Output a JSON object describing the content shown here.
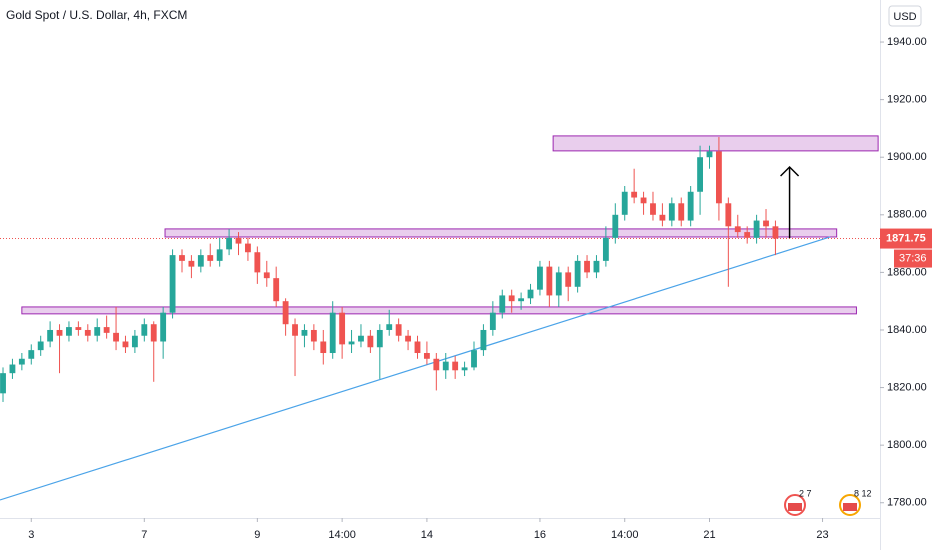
{
  "chart_data": {
    "type": "candlestick",
    "title": "Gold Spot / U.S. Dollar, 4h, FXCM",
    "currency": "USD",
    "up_color": "#26a69a",
    "down_color": "#ef5350",
    "ylim": [
      1774.7,
      1954.6
    ],
    "xlim": [
      -0.32,
      93.1
    ],
    "yticks": [
      {
        "value": 1780,
        "label": "1780.00"
      },
      {
        "value": 1800,
        "label": "1800.00"
      },
      {
        "value": 1820,
        "label": "1820.00"
      },
      {
        "value": 1840,
        "label": "1840.00"
      },
      {
        "value": 1860,
        "label": "1860.00"
      },
      {
        "value": 1880,
        "label": "1880.00"
      },
      {
        "value": 1900,
        "label": "1900.00"
      },
      {
        "value": 1920,
        "label": "1920.00"
      },
      {
        "value": 1940,
        "label": "1940.00"
      }
    ],
    "xticks": [
      {
        "value": 3,
        "label": "3"
      },
      {
        "value": 15,
        "label": "7"
      },
      {
        "value": 27,
        "label": "9"
      },
      {
        "value": 36,
        "label": "14:00"
      },
      {
        "value": 45,
        "label": "14"
      },
      {
        "value": 57,
        "label": "16"
      },
      {
        "value": 66,
        "label": "14:00"
      },
      {
        "value": 75,
        "label": "21"
      },
      {
        "value": 87,
        "label": "23"
      }
    ],
    "candles": [
      [
        1818,
        1827,
        1815,
        1825
      ],
      [
        1825,
        1830,
        1823,
        1828
      ],
      [
        1828,
        1832,
        1826,
        1830
      ],
      [
        1830,
        1835,
        1828,
        1833
      ],
      [
        1833,
        1838,
        1831,
        1836
      ],
      [
        1836,
        1843,
        1834,
        1840
      ],
      [
        1840,
        1842,
        1825,
        1838
      ],
      [
        1838,
        1843,
        1836,
        1841
      ],
      [
        1841,
        1843,
        1838,
        1840
      ],
      [
        1840,
        1842,
        1836,
        1838
      ],
      [
        1838,
        1844,
        1836,
        1841
      ],
      [
        1841,
        1845,
        1837,
        1839
      ],
      [
        1839,
        1848,
        1833,
        1836
      ],
      [
        1836,
        1838,
        1832,
        1834
      ],
      [
        1834,
        1840,
        1832,
        1838
      ],
      [
        1838,
        1844,
        1836,
        1842
      ],
      [
        1842,
        1843,
        1822,
        1836
      ],
      [
        1836,
        1848,
        1830,
        1846
      ],
      [
        1846,
        1868,
        1844,
        1866
      ],
      [
        1866,
        1868,
        1860,
        1864
      ],
      [
        1864,
        1866,
        1858,
        1862
      ],
      [
        1862,
        1868,
        1860,
        1866
      ],
      [
        1866,
        1870,
        1862,
        1864
      ],
      [
        1864,
        1872,
        1862,
        1868
      ],
      [
        1868,
        1875,
        1866,
        1872
      ],
      [
        1872,
        1874,
        1866,
        1870
      ],
      [
        1870,
        1872,
        1864,
        1867
      ],
      [
        1867,
        1869,
        1856,
        1860
      ],
      [
        1860,
        1864,
        1855,
        1858
      ],
      [
        1858,
        1862,
        1848,
        1850
      ],
      [
        1850,
        1851,
        1838,
        1842
      ],
      [
        1842,
        1844,
        1824,
        1838
      ],
      [
        1838,
        1842,
        1834,
        1840
      ],
      [
        1840,
        1842,
        1833,
        1836
      ],
      [
        1836,
        1840,
        1828,
        1832
      ],
      [
        1832,
        1850,
        1830,
        1846
      ],
      [
        1846,
        1848,
        1830,
        1835
      ],
      [
        1835,
        1840,
        1832,
        1836
      ],
      [
        1836,
        1842,
        1834,
        1838
      ],
      [
        1838,
        1840,
        1832,
        1834
      ],
      [
        1834,
        1842,
        1823,
        1840
      ],
      [
        1840,
        1847,
        1838,
        1842
      ],
      [
        1842,
        1844,
        1836,
        1838
      ],
      [
        1838,
        1840,
        1833,
        1836
      ],
      [
        1836,
        1838,
        1830,
        1832
      ],
      [
        1832,
        1836,
        1828,
        1830
      ],
      [
        1830,
        1832,
        1819,
        1826
      ],
      [
        1826,
        1832,
        1823,
        1829
      ],
      [
        1829,
        1831,
        1823,
        1826
      ],
      [
        1826,
        1829,
        1824,
        1827
      ],
      [
        1827,
        1836,
        1826,
        1833
      ],
      [
        1833,
        1842,
        1831,
        1840
      ],
      [
        1840,
        1850,
        1838,
        1846
      ],
      [
        1846,
        1854,
        1844,
        1852
      ],
      [
        1852,
        1854,
        1846,
        1850
      ],
      [
        1850,
        1853,
        1847,
        1851
      ],
      [
        1851,
        1856,
        1849,
        1854
      ],
      [
        1854,
        1864,
        1852,
        1862
      ],
      [
        1862,
        1864,
        1848,
        1852
      ],
      [
        1852,
        1862,
        1848,
        1860
      ],
      [
        1860,
        1862,
        1850,
        1855
      ],
      [
        1855,
        1866,
        1853,
        1864
      ],
      [
        1864,
        1866,
        1858,
        1860
      ],
      [
        1860,
        1866,
        1858,
        1864
      ],
      [
        1864,
        1876,
        1862,
        1872
      ],
      [
        1872,
        1884,
        1870,
        1880
      ],
      [
        1880,
        1890,
        1878,
        1888
      ],
      [
        1888,
        1896,
        1884,
        1886
      ],
      [
        1886,
        1888,
        1880,
        1884
      ],
      [
        1884,
        1888,
        1878,
        1880
      ],
      [
        1880,
        1884,
        1876,
        1878
      ],
      [
        1878,
        1886,
        1876,
        1884
      ],
      [
        1884,
        1886,
        1876,
        1878
      ],
      [
        1878,
        1890,
        1876,
        1888
      ],
      [
        1888,
        1904,
        1880,
        1900
      ],
      [
        1900,
        1904,
        1896,
        1902
      ],
      [
        1902,
        1907,
        1878,
        1884
      ],
      [
        1884,
        1886,
        1855,
        1876
      ],
      [
        1876,
        1880,
        1872,
        1874
      ],
      [
        1874,
        1876,
        1870,
        1872
      ],
      [
        1872,
        1880,
        1870,
        1878
      ],
      [
        1878,
        1882,
        1872,
        1876
      ],
      [
        1876,
        1878,
        1866,
        1871.75
      ]
    ],
    "zones": [
      {
        "x": [
          58.4,
          92.9
        ],
        "y": [
          1902.2,
          1907.4
        ]
      },
      {
        "x": [
          17.2,
          88.5
        ],
        "y": [
          1872.3,
          1875.1
        ]
      },
      {
        "x": [
          2.0,
          90.6
        ],
        "y": [
          1845.6,
          1848.0
        ]
      }
    ],
    "trendline": {
      "x": [
        -0.32,
        87.8
      ],
      "y": [
        1780.97,
        1872.3
      ],
      "color": "#4aa3e8"
    },
    "arrow": {
      "x": 83.5,
      "y": [
        1871.9,
        1896.6
      ]
    },
    "last_price": 1871.75,
    "countdown": "37:36",
    "events": [
      "2 7",
      "8 12"
    ]
  }
}
